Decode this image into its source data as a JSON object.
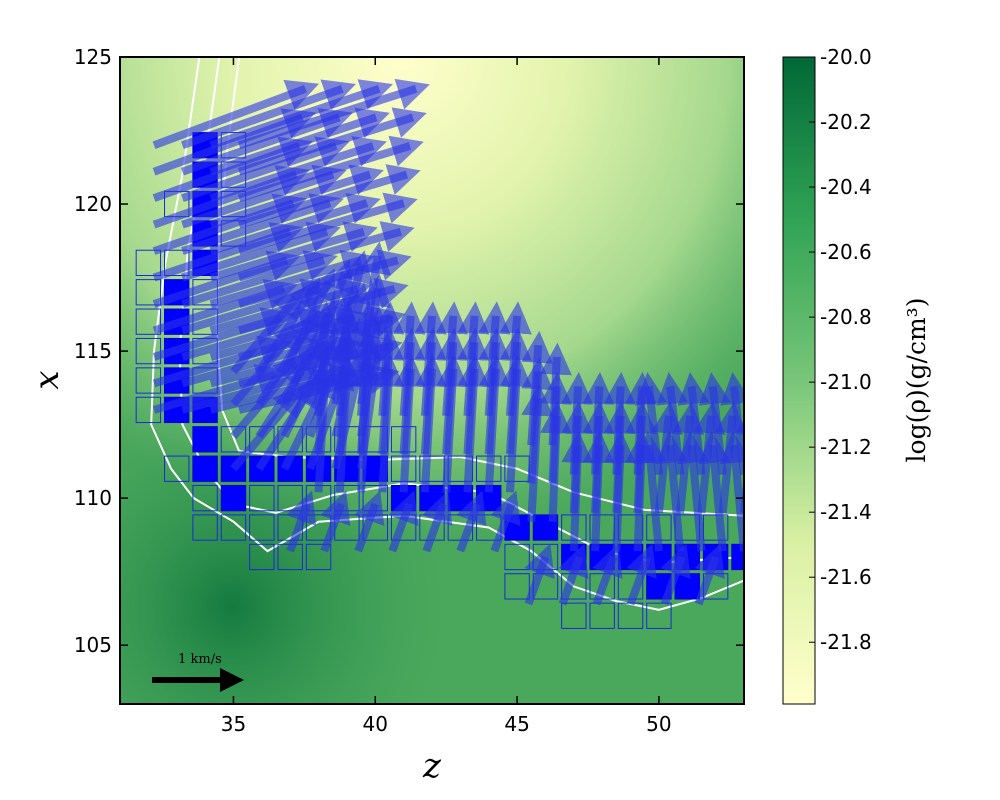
{
  "chart_data": {
    "type": "heatmap",
    "xlabel": "z",
    "ylabel": "x",
    "xlim": [
      31,
      53
    ],
    "ylim": [
      103,
      125
    ],
    "x_ticks": [
      35,
      40,
      45,
      50
    ],
    "y_ticks": [
      105,
      110,
      115,
      120,
      125
    ],
    "colorbar": {
      "label": "log(ρ)(g/cm³)",
      "range": [
        -21.99,
        -20.0
      ],
      "ticks": [
        "-20.0",
        "-20.2",
        "-20.4",
        "-20.6",
        "-20.8",
        "-21.0",
        "-21.2",
        "-21.4",
        "-21.6",
        "-21.8"
      ],
      "tick_values": [
        -20.0,
        -20.2,
        -20.4,
        -20.6,
        -20.8,
        -21.0,
        -21.2,
        -21.4,
        -21.6,
        -21.8
      ],
      "colormap": [
        "#ffffcc",
        "#c2e699",
        "#78c679",
        "#31a354",
        "#006837"
      ]
    },
    "scale_arrow": {
      "label": "1 km/s",
      "z": 32,
      "x": 103.8
    },
    "filled_cells": [
      [
        34,
        122
      ],
      [
        34,
        121
      ],
      [
        34,
        120
      ],
      [
        34,
        119
      ],
      [
        34,
        118
      ],
      [
        33,
        117
      ],
      [
        33,
        116
      ],
      [
        33,
        115
      ],
      [
        33,
        114
      ],
      [
        33,
        113
      ],
      [
        34,
        113
      ],
      [
        34,
        112
      ],
      [
        34,
        111
      ],
      [
        35,
        111
      ],
      [
        36,
        111
      ],
      [
        37,
        111
      ],
      [
        38,
        111
      ],
      [
        39,
        111
      ],
      [
        40,
        111
      ],
      [
        35,
        110
      ],
      [
        41,
        110
      ],
      [
        42,
        110
      ],
      [
        43,
        110
      ],
      [
        44,
        110
      ],
      [
        45,
        109
      ],
      [
        46,
        109
      ],
      [
        47,
        108
      ],
      [
        48,
        108
      ],
      [
        49,
        108
      ],
      [
        50,
        108
      ],
      [
        51,
        108
      ],
      [
        52,
        108
      ],
      [
        53,
        108
      ],
      [
        50,
        107
      ],
      [
        51,
        107
      ]
    ],
    "outline_cells": [
      [
        35,
        122
      ],
      [
        35,
        121
      ],
      [
        33,
        120
      ],
      [
        35,
        120
      ],
      [
        35,
        119
      ],
      [
        32,
        118
      ],
      [
        33,
        118
      ],
      [
        34,
        117
      ],
      [
        32,
        117
      ],
      [
        34,
        116
      ],
      [
        32,
        116
      ],
      [
        34,
        115
      ],
      [
        32,
        115
      ],
      [
        34,
        114
      ],
      [
        32,
        114
      ],
      [
        32,
        113
      ],
      [
        35,
        112
      ],
      [
        36,
        112
      ],
      [
        37,
        112
      ],
      [
        38,
        112
      ],
      [
        39,
        112
      ],
      [
        40,
        112
      ],
      [
        41,
        112
      ],
      [
        33,
        111
      ],
      [
        41,
        111
      ],
      [
        42,
        111
      ],
      [
        43,
        111
      ],
      [
        44,
        111
      ],
      [
        45,
        111
      ],
      [
        34,
        110
      ],
      [
        36,
        110
      ],
      [
        37,
        110
      ],
      [
        38,
        110
      ],
      [
        39,
        110
      ],
      [
        40,
        110
      ],
      [
        34,
        109
      ],
      [
        35,
        109
      ],
      [
        36,
        109
      ],
      [
        37,
        109
      ],
      [
        38,
        109
      ],
      [
        39,
        109
      ],
      [
        40,
        109
      ],
      [
        41,
        109
      ],
      [
        42,
        109
      ],
      [
        43,
        109
      ],
      [
        44,
        109
      ],
      [
        47,
        109
      ],
      [
        48,
        109
      ],
      [
        49,
        109
      ],
      [
        50,
        109
      ],
      [
        51,
        109
      ],
      [
        52,
        109
      ],
      [
        36,
        108
      ],
      [
        37,
        108
      ],
      [
        38,
        108
      ],
      [
        45,
        108
      ],
      [
        46,
        108
      ],
      [
        45,
        107
      ],
      [
        46,
        107
      ],
      [
        47,
        107
      ],
      [
        48,
        107
      ],
      [
        49,
        107
      ],
      [
        52,
        107
      ],
      [
        47,
        106
      ],
      [
        48,
        106
      ],
      [
        49,
        106
      ],
      [
        50,
        106
      ]
    ],
    "velocity_field": {
      "units": "km/s",
      "arrows_upper_region": {
        "z_range": [
          32,
          41
        ],
        "x_range": [
          113,
          124
        ],
        "direction": "up-right"
      },
      "arrows_lower_region": {
        "z_range": [
          35,
          53
        ],
        "x_range": [
          107,
          117
        ],
        "direction": "up"
      }
    },
    "contours": {
      "color": "white",
      "levels_count": 3
    }
  }
}
